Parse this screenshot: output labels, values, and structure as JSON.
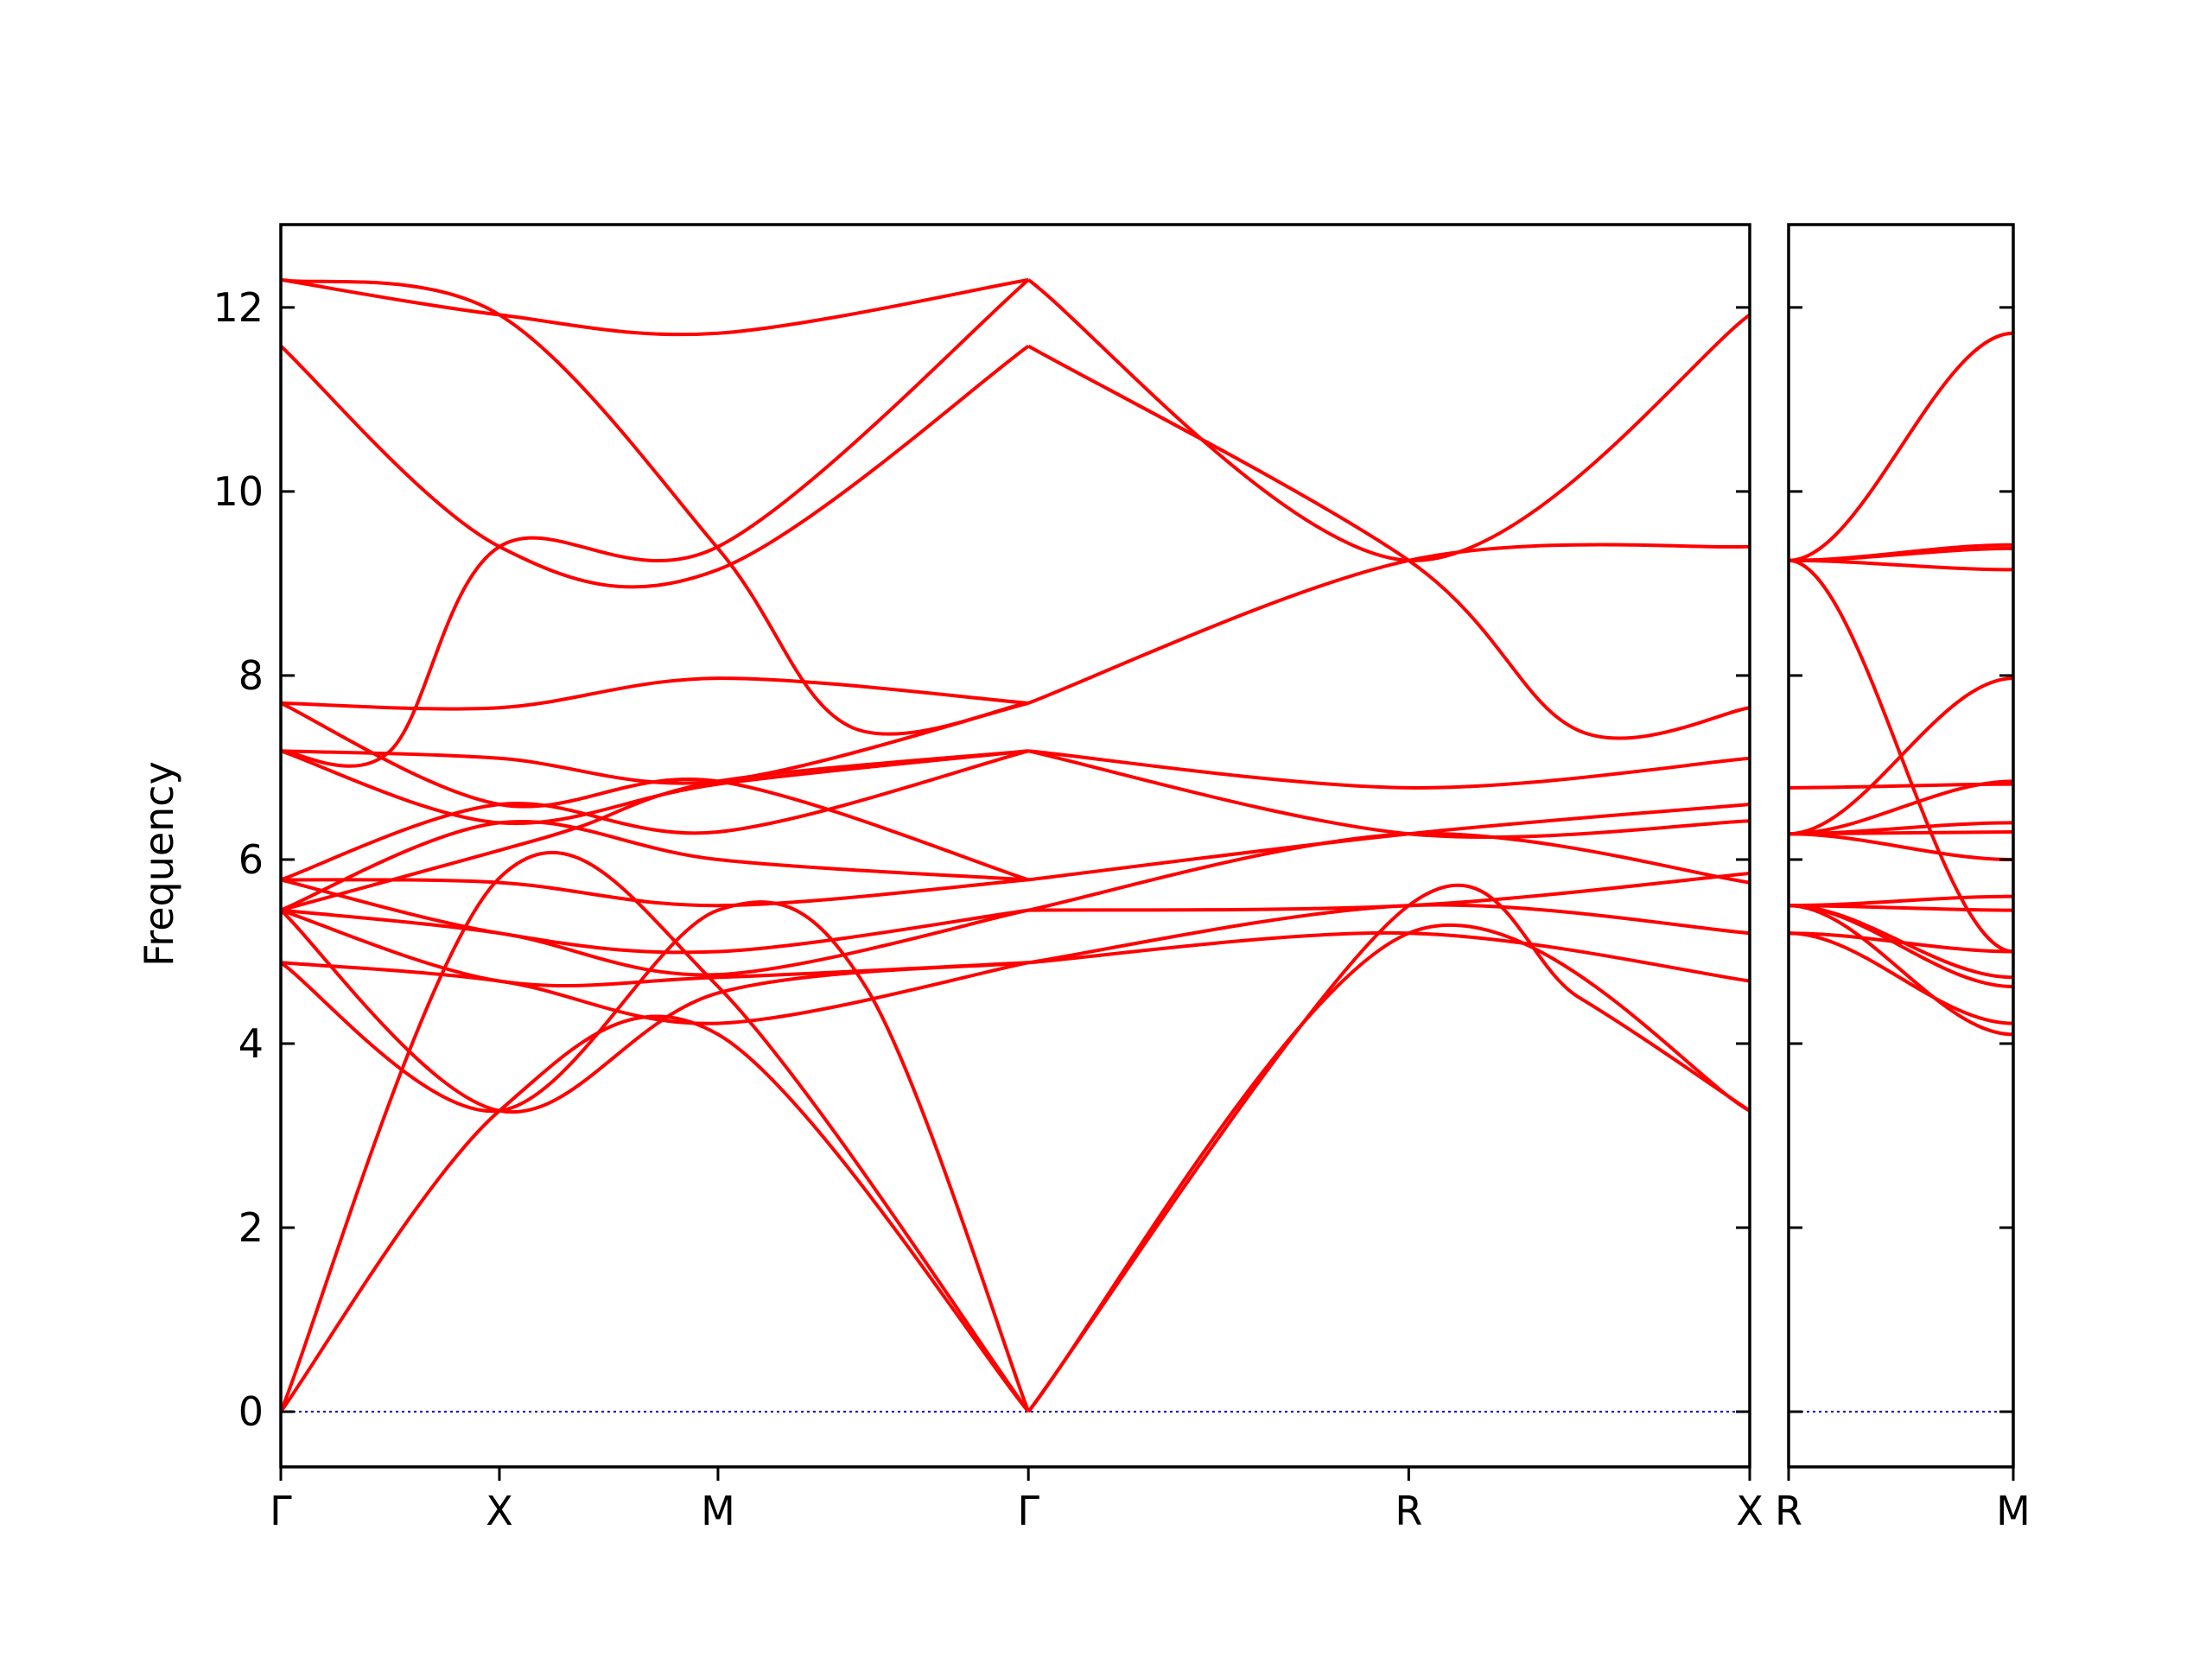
{
  "chart_data": {
    "type": "line",
    "ylabel": "Frequency",
    "ylim": [
      -0.6,
      12.9
    ],
    "yticks": [
      0,
      2,
      4,
      6,
      8,
      10,
      12
    ],
    "ytick_labels": [
      "0",
      "2",
      "4",
      "6",
      "8",
      "10",
      "12"
    ],
    "grid": false,
    "legend": "none",
    "line_color": "#ff0000",
    "zero_line_color": "#0000cc",
    "panels": [
      {
        "xlim": [
          0,
          3.36
        ],
        "x_ticks": [
          0,
          0.5,
          1.0,
          1.71,
          2.58,
          3.36
        ],
        "x_tick_labels": [
          "Γ",
          "X",
          "M",
          "Γ",
          "R",
          "X"
        ],
        "bands": [
          [
            [
              0,
              0
            ],
            [
              0.5,
              3.27
            ],
            [
              1.0,
              4.1
            ],
            [
              1.71,
              0
            ]
          ],
          [
            [
              0,
              0
            ],
            [
              0.5,
              5.8
            ],
            [
              1.0,
              4.62
            ],
            [
              1.71,
              0
            ]
          ],
          [
            [
              0,
              4.88
            ],
            [
              0.5,
              3.27
            ],
            [
              1.0,
              5.45
            ],
            [
              1.34,
              4.6
            ],
            [
              1.71,
              0
            ]
          ],
          [
            [
              0,
              4.88
            ],
            [
              0.5,
              4.68
            ],
            [
              1.0,
              4.22
            ],
            [
              1.71,
              4.88
            ]
          ],
          [
            [
              0,
              5.45
            ],
            [
              0.5,
              3.27
            ],
            [
              1.0,
              4.55
            ],
            [
              1.71,
              4.88
            ]
          ],
          [
            [
              0,
              5.45
            ],
            [
              0.5,
              4.68
            ],
            [
              1.0,
              4.72
            ],
            [
              1.71,
              4.88
            ]
          ],
          [
            [
              0,
              5.45
            ],
            [
              0.5,
              5.2
            ],
            [
              1.0,
              4.75
            ],
            [
              1.71,
              5.45
            ]
          ],
          [
            [
              0,
              5.78
            ],
            [
              0.5,
              5.2
            ],
            [
              1.0,
              5.0
            ],
            [
              1.71,
              5.45
            ]
          ],
          [
            [
              0,
              5.78
            ],
            [
              0.5,
              5.75
            ],
            [
              1.0,
              5.5
            ],
            [
              1.71,
              5.78
            ]
          ],
          [
            [
              0,
              5.45
            ],
            [
              0.5,
              6.4
            ],
            [
              1.0,
              6.0
            ],
            [
              1.71,
              5.78
            ]
          ],
          [
            [
              0,
              5.78
            ],
            [
              0.5,
              6.6
            ],
            [
              1.0,
              6.3
            ],
            [
              1.71,
              7.18
            ]
          ],
          [
            [
              0,
              5.45
            ],
            [
              0.5,
              6.1
            ],
            [
              0.68,
              6.35
            ],
            [
              1.0,
              6.85
            ],
            [
              1.71,
              7.18
            ]
          ],
          [
            [
              0,
              7.18
            ],
            [
              0.5,
              6.4
            ],
            [
              1.0,
              6.82
            ],
            [
              1.71,
              7.18
            ]
          ],
          [
            [
              0,
              7.7
            ],
            [
              0.5,
              6.6
            ],
            [
              1.0,
              6.85
            ],
            [
              1.71,
              5.78
            ]
          ],
          [
            [
              0,
              7.18
            ],
            [
              0.5,
              7.1
            ],
            [
              1.0,
              6.85
            ],
            [
              1.71,
              7.7
            ]
          ],
          [
            [
              0,
              7.7
            ],
            [
              0.5,
              7.65
            ],
            [
              1.0,
              7.97
            ],
            [
              1.71,
              7.7
            ]
          ],
          [
            [
              0,
              7.18
            ],
            [
              0.25,
              7.18
            ],
            [
              0.5,
              9.4
            ],
            [
              1.0,
              9.4
            ],
            [
              1.71,
              12.3
            ]
          ],
          [
            [
              0,
              11.58
            ],
            [
              0.5,
              9.4
            ],
            [
              1.0,
              9.15
            ],
            [
              1.71,
              11.58
            ]
          ],
          [
            [
              0,
              12.3
            ],
            [
              0.5,
              11.92
            ],
            [
              1.0,
              9.38
            ],
            [
              1.3,
              7.45
            ],
            [
              1.71,
              7.7
            ]
          ],
          [
            [
              0,
              12.3
            ],
            [
              0.5,
              11.92
            ],
            [
              1.0,
              11.72
            ],
            [
              1.71,
              12.3
            ]
          ],
          [
            [
              1.71,
              0
            ],
            [
              2.58,
              5.5
            ],
            [
              2.97,
              4.5
            ],
            [
              3.36,
              3.27
            ]
          ],
          [
            [
              1.71,
              0
            ],
            [
              2.58,
              5.2
            ],
            [
              3.36,
              3.27
            ]
          ],
          [
            [
              1.71,
              4.88
            ],
            [
              2.58,
              5.2
            ],
            [
              3.36,
              4.68
            ]
          ],
          [
            [
              1.71,
              4.88
            ],
            [
              2.58,
              5.5
            ],
            [
              3.36,
              5.2
            ]
          ],
          [
            [
              1.71,
              5.45
            ],
            [
              2.58,
              6.28
            ],
            [
              3.36,
              5.75
            ]
          ],
          [
            [
              1.71,
              5.45
            ],
            [
              2.58,
              5.5
            ],
            [
              3.36,
              5.85
            ]
          ],
          [
            [
              1.71,
              5.78
            ],
            [
              2.58,
              6.28
            ],
            [
              3.36,
              6.6
            ]
          ],
          [
            [
              1.71,
              7.18
            ],
            [
              2.58,
              6.28
            ],
            [
              3.36,
              6.42
            ]
          ],
          [
            [
              1.71,
              7.18
            ],
            [
              2.58,
              6.78
            ],
            [
              3.36,
              7.1
            ]
          ],
          [
            [
              1.71,
              7.7
            ],
            [
              2.58,
              9.25
            ],
            [
              3.36,
              9.4
            ]
          ],
          [
            [
              1.71,
              12.3
            ],
            [
              2.58,
              9.25
            ],
            [
              3.36,
              11.92
            ]
          ],
          [
            [
              1.71,
              11.58
            ],
            [
              2.58,
              9.25
            ],
            [
              2.97,
              7.4
            ],
            [
              3.36,
              7.65
            ]
          ]
        ]
      },
      {
        "xlim": [
          0,
          1.0
        ],
        "x_ticks": [
          0,
          1.0
        ],
        "x_tick_labels": [
          "R",
          "M"
        ],
        "bands": [
          [
            [
              0,
              5.5
            ],
            [
              1.0,
              4.1
            ]
          ],
          [
            [
              0,
              5.2
            ],
            [
              1.0,
              4.22
            ]
          ],
          [
            [
              0,
              5.5
            ],
            [
              1.0,
              4.62
            ]
          ],
          [
            [
              0,
              5.5
            ],
            [
              1.0,
              4.72
            ]
          ],
          [
            [
              0,
              5.2
            ],
            [
              1.0,
              5.0
            ]
          ],
          [
            [
              0,
              5.5
            ],
            [
              1.0,
              5.45
            ]
          ],
          [
            [
              0,
              5.5
            ],
            [
              1.0,
              5.6
            ]
          ],
          [
            [
              0,
              6.28
            ],
            [
              1.0,
              6.0
            ]
          ],
          [
            [
              0,
              6.28
            ],
            [
              1.0,
              6.3
            ]
          ],
          [
            [
              0,
              6.28
            ],
            [
              1.0,
              6.4
            ]
          ],
          [
            [
              0,
              6.28
            ],
            [
              1.0,
              6.85
            ]
          ],
          [
            [
              0,
              6.78
            ],
            [
              1.0,
              6.82
            ]
          ],
          [
            [
              0,
              6.28
            ],
            [
              1.0,
              7.97
            ]
          ],
          [
            [
              0,
              9.25
            ],
            [
              1.0,
              5.0
            ]
          ],
          [
            [
              0,
              9.25
            ],
            [
              1.0,
              9.15
            ]
          ],
          [
            [
              0,
              9.25
            ],
            [
              1.0,
              9.38
            ]
          ],
          [
            [
              0,
              9.25
            ],
            [
              1.0,
              9.42
            ]
          ],
          [
            [
              0,
              9.25
            ],
            [
              1.0,
              11.72
            ]
          ]
        ]
      }
    ]
  }
}
